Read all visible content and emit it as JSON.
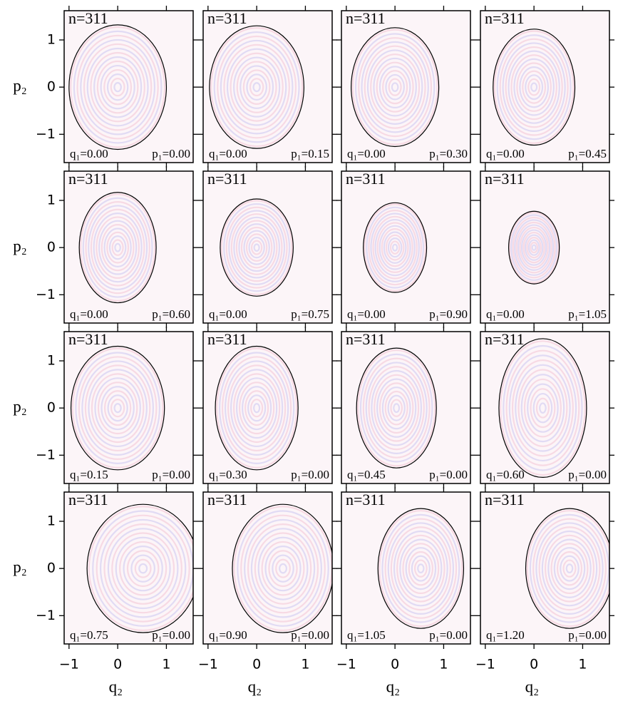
{
  "chart_data": [
    {
      "type": "wigner",
      "annotation": "n=311",
      "q1_label": "q₁=0.00",
      "p1_label": "p₁=0.00",
      "ellipse": {
        "cx": 0,
        "cy": 0,
        "rx": 1.0,
        "ry": 1.32
      },
      "ylabel": "p₂",
      "xlim": [
        -1.1,
        1.55
      ],
      "ylim": [
        -1.6,
        1.62
      ],
      "xticks": [
        {
          "value": -1,
          "label": "−1"
        },
        0,
        1
      ],
      "yticks": [
        {
          "value": -1,
          "label": "−1"
        },
        0,
        1
      ],
      "colors": [
        "#e0507a",
        "#5a5ae0"
      ]
    },
    {
      "type": "wigner",
      "annotation": "n=311",
      "q1_label": "q₁=0.00",
      "p1_label": "p₁=0.15",
      "ellipse": {
        "cx": 0,
        "cy": 0,
        "rx": 0.97,
        "ry": 1.3
      },
      "xlim": [
        -1.1,
        1.55
      ],
      "ylim": [
        -1.6,
        1.62
      ],
      "xticks": [
        {
          "value": -1,
          "label": "−1"
        },
        0,
        1
      ],
      "yticks": [
        {
          "value": -1,
          "label": "−1"
        },
        0,
        1
      ],
      "colors": [
        "#e0507a",
        "#5a5ae0"
      ]
    },
    {
      "type": "wigner",
      "annotation": "n=311",
      "q1_label": "q₁=0.00",
      "p1_label": "p₁=0.30",
      "ellipse": {
        "cx": 0,
        "cy": 0,
        "rx": 0.9,
        "ry": 1.26
      },
      "xlim": [
        -1.1,
        1.55
      ],
      "ylim": [
        -1.6,
        1.62
      ],
      "xticks": [
        {
          "value": -1,
          "label": "−1"
        },
        0,
        1
      ],
      "yticks": [
        {
          "value": -1,
          "label": "−1"
        },
        0,
        1
      ],
      "colors": [
        "#e0507a",
        "#5a5ae0"
      ]
    },
    {
      "type": "wigner",
      "annotation": "n=311",
      "q1_label": "q₁=0.00",
      "p1_label": "p₁=0.45",
      "ellipse": {
        "cx": 0,
        "cy": 0,
        "rx": 0.84,
        "ry": 1.23
      },
      "xlim": [
        -1.1,
        1.55
      ],
      "ylim": [
        -1.6,
        1.62
      ],
      "xticks": [
        {
          "value": -1,
          "label": "−1"
        },
        0,
        1
      ],
      "yticks": [
        {
          "value": -1,
          "label": "−1"
        },
        0,
        1
      ],
      "colors": [
        "#e0507a",
        "#5a5ae0"
      ]
    },
    {
      "type": "wigner",
      "annotation": "n=311",
      "q1_label": "q₁=0.00",
      "p1_label": "p₁=0.60",
      "ellipse": {
        "cx": 0,
        "cy": 0,
        "rx": 0.79,
        "ry": 1.17
      },
      "ylabel": "p₂",
      "xlim": [
        -1.1,
        1.55
      ],
      "ylim": [
        -1.6,
        1.62
      ],
      "xticks": [
        {
          "value": -1,
          "label": "−1"
        },
        0,
        1
      ],
      "yticks": [
        {
          "value": -1,
          "label": "−1"
        },
        0,
        1
      ],
      "colors": [
        "#e0507a",
        "#5a5ae0"
      ]
    },
    {
      "type": "wigner",
      "annotation": "n=311",
      "q1_label": "q₁=0.00",
      "p1_label": "p₁=0.75",
      "ellipse": {
        "cx": 0,
        "cy": 0,
        "rx": 0.75,
        "ry": 1.03
      },
      "xlim": [
        -1.1,
        1.55
      ],
      "ylim": [
        -1.6,
        1.62
      ],
      "xticks": [
        {
          "value": -1,
          "label": "−1"
        },
        0,
        1
      ],
      "yticks": [
        {
          "value": -1,
          "label": "−1"
        },
        0,
        1
      ],
      "colors": [
        "#e0507a",
        "#5a5ae0"
      ]
    },
    {
      "type": "wigner",
      "annotation": "n=311",
      "q1_label": "q₁=0.00",
      "p1_label": "p₁=0.90",
      "ellipse": {
        "cx": 0,
        "cy": 0,
        "rx": 0.65,
        "ry": 0.95
      },
      "xlim": [
        -1.1,
        1.55
      ],
      "ylim": [
        -1.6,
        1.62
      ],
      "xticks": [
        {
          "value": -1,
          "label": "−1"
        },
        0,
        1
      ],
      "yticks": [
        {
          "value": -1,
          "label": "−1"
        },
        0,
        1
      ],
      "colors": [
        "#e0507a",
        "#5a5ae0"
      ]
    },
    {
      "type": "wigner",
      "annotation": "n=311",
      "q1_label": "q₁=0.00",
      "p1_label": "p₁=1.05",
      "ellipse": {
        "cx": 0,
        "cy": 0,
        "rx": 0.52,
        "ry": 0.77
      },
      "xlim": [
        -1.1,
        1.55
      ],
      "ylim": [
        -1.6,
        1.62
      ],
      "xticks": [
        {
          "value": -1,
          "label": "−1"
        },
        0,
        1
      ],
      "yticks": [
        {
          "value": -1,
          "label": "−1"
        },
        0,
        1
      ],
      "colors": [
        "#e0507a",
        "#5a5ae0"
      ]
    },
    {
      "type": "wigner",
      "annotation": "n=311",
      "q1_label": "q₁=0.15",
      "p1_label": "p₁=0.00",
      "ellipse": {
        "cx": 0,
        "cy": 0,
        "rx": 0.96,
        "ry": 1.31
      },
      "ylabel": "p₂",
      "xlim": [
        -1.1,
        1.55
      ],
      "ylim": [
        -1.6,
        1.62
      ],
      "xticks": [
        {
          "value": -1,
          "label": "−1"
        },
        0,
        1
      ],
      "yticks": [
        {
          "value": -1,
          "label": "−1"
        },
        0,
        1
      ],
      "colors": [
        "#e0507a",
        "#5a5ae0"
      ]
    },
    {
      "type": "wigner",
      "annotation": "n=311",
      "q1_label": "q₁=0.30",
      "p1_label": "p₁=0.00",
      "ellipse": {
        "cx": 0,
        "cy": 0,
        "rx": 0.85,
        "ry": 1.31
      },
      "xlim": [
        -1.1,
        1.55
      ],
      "ylim": [
        -1.6,
        1.62
      ],
      "xticks": [
        {
          "value": -1,
          "label": "−1"
        },
        0,
        1
      ],
      "yticks": [
        {
          "value": -1,
          "label": "−1"
        },
        0,
        1
      ],
      "colors": [
        "#e0507a",
        "#5a5ae0"
      ]
    },
    {
      "type": "wigner",
      "annotation": "n=311",
      "q1_label": "q₁=0.45",
      "p1_label": "p₁=0.00",
      "ellipse": {
        "cx": 0.03,
        "cy": 0,
        "rx": 0.82,
        "ry": 1.27
      },
      "xlim": [
        -1.1,
        1.55
      ],
      "ylim": [
        -1.6,
        1.62
      ],
      "xticks": [
        {
          "value": -1,
          "label": "−1"
        },
        0,
        1
      ],
      "yticks": [
        {
          "value": -1,
          "label": "−1"
        },
        0,
        1
      ],
      "colors": [
        "#e0507a",
        "#5a5ae0"
      ]
    },
    {
      "type": "wigner",
      "annotation": "n=311",
      "q1_label": "q₁=0.60",
      "p1_label": "p₁=0.00",
      "ellipse": {
        "cx": 0.18,
        "cy": 0,
        "rx": 0.9,
        "ry": 1.47
      },
      "xlim": [
        -1.1,
        1.55
      ],
      "ylim": [
        -1.6,
        1.62
      ],
      "xticks": [
        {
          "value": -1,
          "label": "−1"
        },
        0,
        1
      ],
      "yticks": [
        {
          "value": -1,
          "label": "−1"
        },
        0,
        1
      ],
      "colors": [
        "#e0507a",
        "#5a5ae0"
      ]
    },
    {
      "type": "wigner",
      "annotation": "n=311",
      "q1_label": "q₁=0.75",
      "p1_label": "p₁=0.00",
      "ellipse": {
        "cx": 0.52,
        "cy": 0,
        "rx": 1.15,
        "ry": 1.36
      },
      "ylabel": "p₂",
      "xlabel": "q₂",
      "xlim": [
        -1.1,
        1.55
      ],
      "ylim": [
        -1.6,
        1.62
      ],
      "xticks": [
        {
          "value": -1,
          "label": "−1"
        },
        0,
        1
      ],
      "yticks": [
        {
          "value": -1,
          "label": "−1"
        },
        0,
        1
      ],
      "colors": [
        "#e0507a",
        "#5a5ae0"
      ]
    },
    {
      "type": "wigner",
      "annotation": "n=311",
      "q1_label": "q₁=0.90",
      "p1_label": "p₁=0.00",
      "ellipse": {
        "cx": 0.54,
        "cy": 0,
        "rx": 1.04,
        "ry": 1.36
      },
      "xlabel": "q₂",
      "xlim": [
        -1.1,
        1.55
      ],
      "ylim": [
        -1.6,
        1.62
      ],
      "xticks": [
        {
          "value": -1,
          "label": "−1"
        },
        0,
        1
      ],
      "yticks": [
        {
          "value": -1,
          "label": "−1"
        },
        0,
        1
      ],
      "colors": [
        "#e0507a",
        "#5a5ae0"
      ]
    },
    {
      "type": "wigner",
      "annotation": "n=311",
      "q1_label": "q₁=1.05",
      "p1_label": "p₁=0.00",
      "ellipse": {
        "cx": 0.53,
        "cy": 0,
        "rx": 0.88,
        "ry": 1.27
      },
      "xlabel": "q₂",
      "xlim": [
        -1.1,
        1.55
      ],
      "ylim": [
        -1.6,
        1.62
      ],
      "xticks": [
        {
          "value": -1,
          "label": "−1"
        },
        0,
        1
      ],
      "yticks": [
        {
          "value": -1,
          "label": "−1"
        },
        0,
        1
      ],
      "colors": [
        "#e0507a",
        "#5a5ae0"
      ]
    },
    {
      "type": "wigner",
      "annotation": "n=311",
      "q1_label": "q₁=1.20",
      "p1_label": "p₁=0.00",
      "ellipse": {
        "cx": 0.73,
        "cy": 0,
        "rx": 0.9,
        "ry": 1.27
      },
      "xlabel": "q₂",
      "xlim": [
        -1.1,
        1.55
      ],
      "ylim": [
        -1.6,
        1.62
      ],
      "xticks": [
        {
          "value": -1,
          "label": "−1"
        },
        0,
        1
      ],
      "yticks": [
        {
          "value": -1,
          "label": "−1"
        },
        0,
        1
      ],
      "colors": [
        "#e0507a",
        "#5a5ae0"
      ]
    }
  ]
}
